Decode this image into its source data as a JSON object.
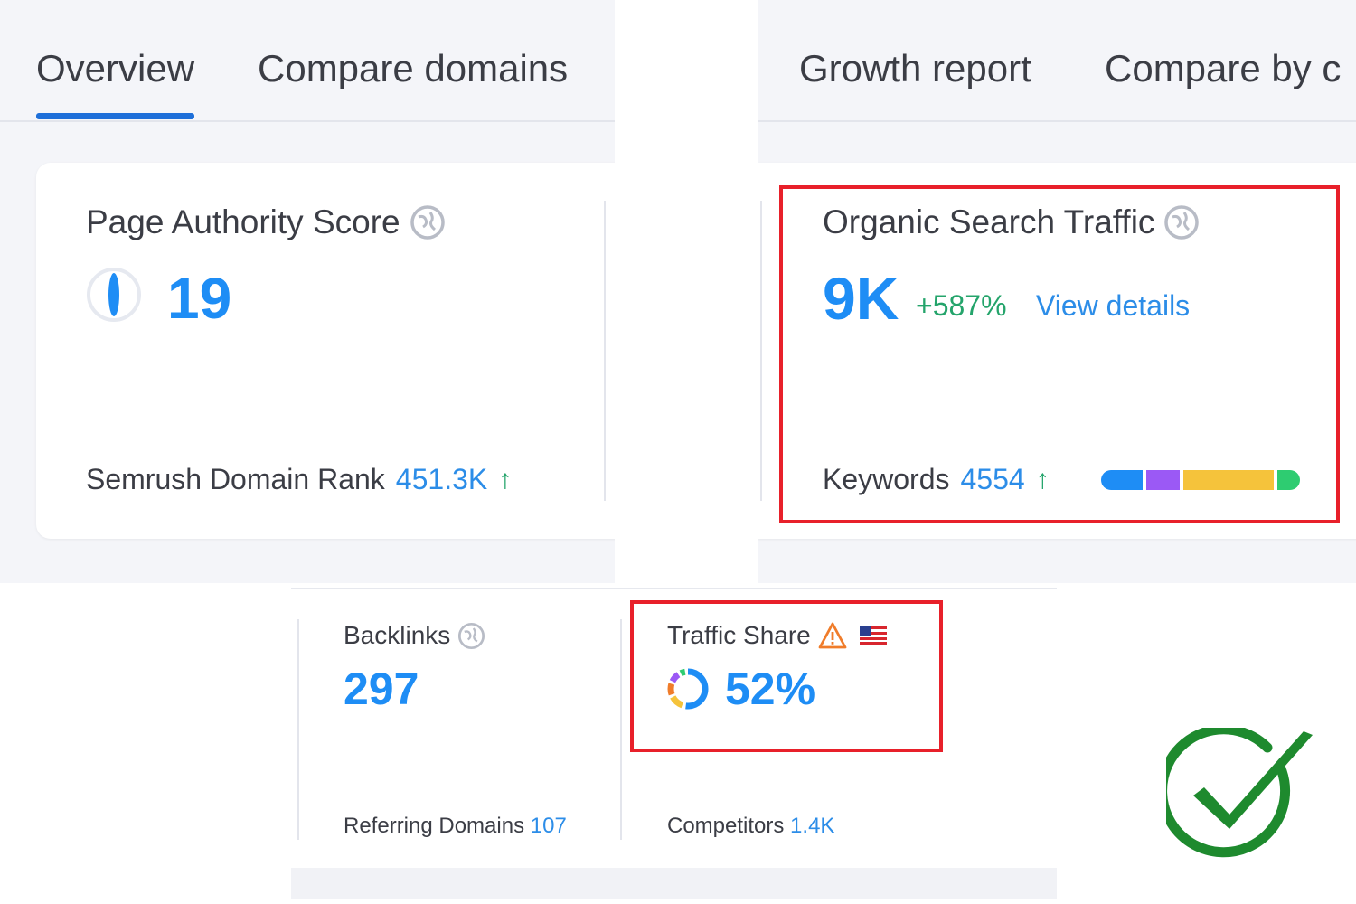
{
  "tabs": [
    "Overview",
    "Compare domains",
    "Growth report",
    "Compare by c"
  ],
  "authority": {
    "title": "Page Authority Score",
    "value": "19",
    "footer_label": "Semrush Domain Rank",
    "footer_value": "451.3K"
  },
  "organic": {
    "title": "Organic Search Traffic",
    "value": "9K",
    "change": "+587%",
    "link": "View details",
    "footer_label": "Keywords",
    "footer_value": "4554",
    "bar_segments": [
      {
        "color": "#1e8df5",
        "share": 0.22
      },
      {
        "color": "#9b59f5",
        "share": 0.18
      },
      {
        "color": "#f5c33b",
        "share": 0.48
      },
      {
        "color": "#2ecc71",
        "share": 0.12
      }
    ]
  },
  "backlinks": {
    "title": "Backlinks",
    "value": "297",
    "footer_label": "Referring Domains",
    "footer_value": "107"
  },
  "traffic_share": {
    "title": "Traffic Share",
    "value": "52%",
    "footer_label": "Competitors",
    "footer_value": "1.4K",
    "icons": [
      "warning-icon",
      "us-flag-icon",
      "donut-chart-icon"
    ]
  },
  "colors": {
    "accent_blue": "#1e8df5",
    "positive_green": "#24a46b",
    "highlight_red": "#e8202a",
    "check_green": "#1e8a2e"
  }
}
